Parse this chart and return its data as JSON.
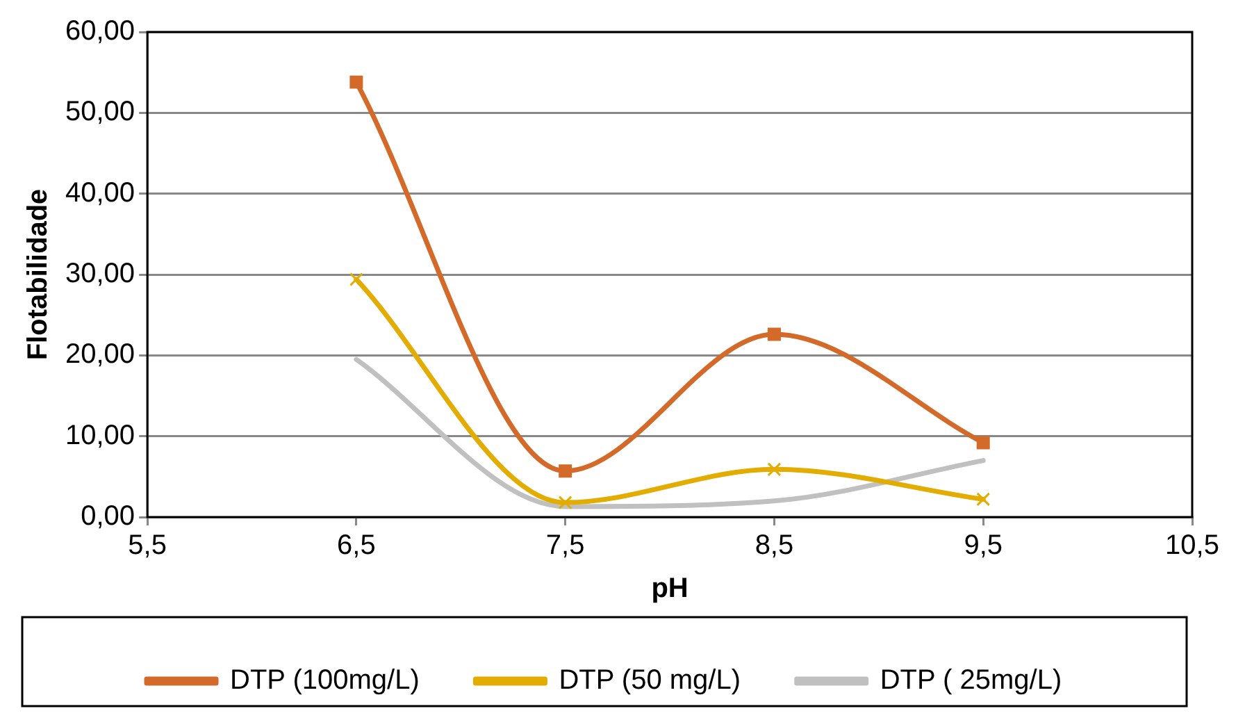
{
  "chart_data": {
    "type": "line",
    "xlabel": "pH",
    "ylabel": "Flotabilidade",
    "xlim": [
      5.5,
      10.5
    ],
    "xticks": [
      {
        "value": 5.5,
        "label": "5,5"
      },
      {
        "value": 6.5,
        "label": "6,5"
      },
      {
        "value": 7.5,
        "label": "7,5"
      },
      {
        "value": 8.5,
        "label": "8,5"
      },
      {
        "value": 9.5,
        "label": "9,5"
      },
      {
        "value": 10.5,
        "label": "10,5"
      }
    ],
    "ylim": [
      0,
      60
    ],
    "yticks": [
      {
        "value": 0,
        "label": "0,00"
      },
      {
        "value": 10,
        "label": "10,00"
      },
      {
        "value": 20,
        "label": "20,00"
      },
      {
        "value": 30,
        "label": "30,00"
      },
      {
        "value": 40,
        "label": "40,00"
      },
      {
        "value": 50,
        "label": "50,00"
      },
      {
        "value": 60,
        "label": "60,00"
      }
    ],
    "x": [
      6.5,
      7.5,
      8.5,
      9.5
    ],
    "series": [
      {
        "name": "DTP (100mg/L)",
        "color": "#d46a2a",
        "marker": "square",
        "values": [
          53.8,
          5.7,
          22.6,
          9.2
        ]
      },
      {
        "name": "DTP (50 mg/L)",
        "color": "#e3ac00",
        "marker": "cross",
        "values": [
          29.4,
          1.8,
          5.9,
          2.2
        ]
      },
      {
        "name": "DTP ( 25mg/L)",
        "color": "#c0c0c0",
        "marker": "none",
        "values": [
          19.5,
          1.3,
          2.0,
          7.0
        ]
      }
    ],
    "grid": "y",
    "legend": "bottom"
  }
}
